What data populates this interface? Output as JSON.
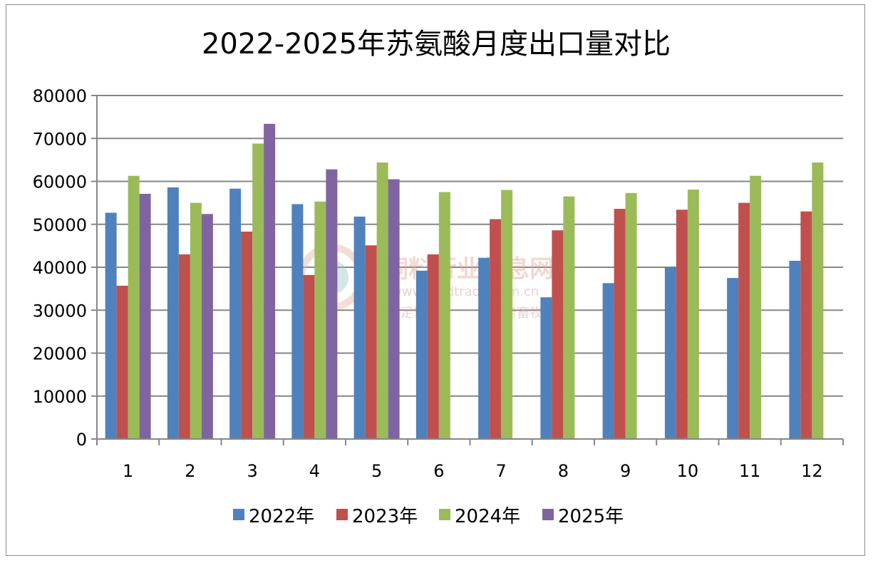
{
  "chart_data": {
    "type": "bar",
    "title": "2022-2025年苏氨酸月度出口量对比",
    "xlabel": "",
    "ylabel": "",
    "categories": [
      "1",
      "2",
      "3",
      "4",
      "5",
      "6",
      "7",
      "8",
      "9",
      "10",
      "11",
      "12"
    ],
    "ylim": [
      0,
      80000
    ],
    "yticks": [
      "0",
      "10000",
      "20000",
      "30000",
      "40000",
      "50000",
      "60000",
      "70000",
      "80000"
    ],
    "grid": true,
    "legend_position": "bottom",
    "series": [
      {
        "name": "2022年",
        "color": "#4f81bd",
        "values": [
          52700,
          58600,
          58300,
          54700,
          51800,
          39200,
          42200,
          33000,
          36300,
          40000,
          37500,
          41500
        ]
      },
      {
        "name": "2023年",
        "color": "#c0504d",
        "values": [
          35700,
          43000,
          48300,
          38200,
          45100,
          43000,
          51200,
          48600,
          53600,
          53400,
          55000,
          53000
        ]
      },
      {
        "name": "2024年",
        "color": "#9bbb59",
        "values": [
          61300,
          55000,
          68800,
          55300,
          64400,
          57500,
          58000,
          56500,
          57300,
          58100,
          61300,
          64400
        ]
      },
      {
        "name": "2025年",
        "color": "#8064a2",
        "values": [
          57100,
          52400,
          73400,
          62800,
          60500,
          null,
          null,
          null,
          null,
          null,
          null,
          null
        ]
      }
    ]
  },
  "watermark": {
    "name": "饲料行业信息网",
    "url": "www.feedtrade.com.cn",
    "slogan_left": "立足饲料",
    "slogan_right": "服务畜牧"
  }
}
